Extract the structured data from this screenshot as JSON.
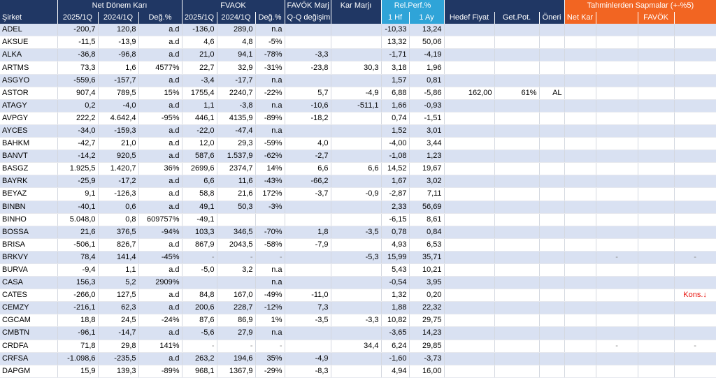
{
  "headers": {
    "group": {
      "net": "Net Dönem Karı",
      "fvaok": "FVAOK",
      "fvaok_marj": "FAVÖK Marj",
      "kar_marji": "Kar Marjı",
      "rel_perf": "Rel.Perf.%",
      "sapmalar": "Tahminlerden Sapmalar (+-%5)"
    },
    "cols": [
      "Şirket",
      "2025/1Q",
      "2024/1Q",
      "Değ.%",
      "2025/1Q",
      "2024/1Q",
      "Değ.%",
      "Q-Q değişim (%)",
      "",
      "1 Hf",
      "1 Ay",
      "Hedef Fiyat",
      "Get.Pot.",
      "Öneri",
      "Net Kar",
      "",
      "FAVÖK",
      ""
    ]
  },
  "rows": [
    [
      "ADEL",
      "-200,7",
      "120,8",
      "a.d",
      "-136,0",
      "289,0",
      "n.a",
      "",
      "",
      "-10,33",
      "13,24",
      "",
      "",
      "",
      "",
      "",
      "",
      ""
    ],
    [
      "AKSUE",
      "-11,5",
      "-13,9",
      "a.d",
      "4,6",
      "4,8",
      "-5%",
      "",
      "",
      "13,32",
      "50,06",
      "",
      "",
      "",
      "",
      "",
      "",
      ""
    ],
    [
      "ALKA",
      "-36,8",
      "-96,8",
      "a.d",
      "21,0",
      "94,1",
      "-78%",
      "-3,3",
      "",
      "-1,71",
      "-4,19",
      "",
      "",
      "",
      "",
      "",
      "",
      ""
    ],
    [
      "ARTMS",
      "73,3",
      "1,6",
      "4577%",
      "22,7",
      "32,9",
      "-31%",
      "-23,8",
      "30,3",
      "3,18",
      "1,96",
      "",
      "",
      "",
      "",
      "",
      "",
      ""
    ],
    [
      "ASGYO",
      "-559,6",
      "-157,7",
      "a.d",
      "-3,4",
      "-17,7",
      "n.a",
      "",
      "",
      "1,57",
      "0,81",
      "",
      "",
      "",
      "",
      "",
      "",
      ""
    ],
    [
      "ASTOR",
      "907,4",
      "789,5",
      "15%",
      "1755,4",
      "2240,7",
      "-22%",
      "5,7",
      "-4,9",
      "6,88",
      "-5,86",
      "162,00",
      "61%",
      "AL",
      "",
      "",
      "",
      ""
    ],
    [
      "ATAGY",
      "0,2",
      "-4,0",
      "a.d",
      "1,1",
      "-3,8",
      "n.a",
      "-10,6",
      "-511,1",
      "1,66",
      "-0,93",
      "",
      "",
      "",
      "",
      "",
      "",
      ""
    ],
    [
      "AVPGY",
      "222,2",
      "4.642,4",
      "-95%",
      "446,1",
      "4135,9",
      "-89%",
      "-18,2",
      "",
      "0,74",
      "-1,51",
      "",
      "",
      "",
      "",
      "",
      "",
      ""
    ],
    [
      "AYCES",
      "-34,0",
      "-159,3",
      "a.d",
      "-22,0",
      "-47,4",
      "n.a",
      "",
      "",
      "1,52",
      "3,01",
      "",
      "",
      "",
      "",
      "",
      "",
      ""
    ],
    [
      "BAHKM",
      "-42,7",
      "21,0",
      "a.d",
      "12,0",
      "29,3",
      "-59%",
      "4,0",
      "",
      "-4,00",
      "3,44",
      "",
      "",
      "",
      "",
      "",
      "",
      ""
    ],
    [
      "BANVT",
      "-14,2",
      "920,5",
      "a.d",
      "587,6",
      "1.537,9",
      "-62%",
      "-2,7",
      "",
      "-1,08",
      "1,23",
      "",
      "",
      "",
      "",
      "",
      "",
      ""
    ],
    [
      "BASGZ",
      "1.925,5",
      "1.420,7",
      "36%",
      "2699,6",
      "2374,7",
      "14%",
      "6,6",
      "6,6",
      "14,52",
      "19,67",
      "",
      "",
      "",
      "",
      "",
      "",
      ""
    ],
    [
      "BAYRK",
      "-25,9",
      "-17,2",
      "a.d",
      "6,6",
      "11,6",
      "-43%",
      "-66,2",
      "",
      "1,67",
      "3,02",
      "",
      "",
      "",
      "",
      "",
      "",
      ""
    ],
    [
      "BEYAZ",
      "9,1",
      "-126,3",
      "a.d",
      "58,8",
      "21,6",
      "172%",
      "-3,7",
      "-0,9",
      "-2,87",
      "7,11",
      "",
      "",
      "",
      "",
      "",
      "",
      ""
    ],
    [
      "BINBN",
      "-40,1",
      "0,6",
      "a.d",
      "49,1",
      "50,3",
      "-3%",
      "",
      "",
      "2,33",
      "56,69",
      "",
      "",
      "",
      "",
      "",
      "",
      ""
    ],
    [
      "BINHO",
      "5.048,0",
      "0,8",
      "609757%",
      "-49,1",
      "",
      "",
      "",
      "",
      "-6,15",
      "8,61",
      "",
      "",
      "",
      "",
      "",
      "",
      ""
    ],
    [
      "BOSSA",
      "21,6",
      "376,5",
      "-94%",
      "103,3",
      "346,5",
      "-70%",
      "1,8",
      "-3,5",
      "0,78",
      "0,84",
      "",
      "",
      "",
      "",
      "",
      "",
      ""
    ],
    [
      "BRISA",
      "-506,1",
      "826,7",
      "a.d",
      "867,9",
      "2043,5",
      "-58%",
      "-7,9",
      "",
      "4,93",
      "6,53",
      "",
      "",
      "",
      "",
      "",
      "",
      ""
    ],
    [
      "BRKVY",
      "78,4",
      "141,4",
      "-45%",
      "-",
      "-",
      "-",
      "",
      "-5,3",
      "15,99",
      "35,71",
      "",
      "",
      "",
      "",
      "-",
      "",
      "-"
    ],
    [
      "BURVA",
      "-9,4",
      "1,1",
      "a.d",
      "-5,0",
      "3,2",
      "n.a",
      "",
      "",
      "5,43",
      "10,21",
      "",
      "",
      "",
      "",
      "",
      "",
      ""
    ],
    [
      "CASA",
      "156,3",
      "5,2",
      "2909%",
      "",
      "",
      "n.a",
      "",
      "",
      "-0,54",
      "3,95",
      "",
      "",
      "",
      "",
      "",
      "",
      ""
    ],
    [
      "CATES",
      "-266,0",
      "127,5",
      "a.d",
      "84,8",
      "167,0",
      "-49%",
      "-11,0",
      "",
      "1,32",
      "0,20",
      "",
      "",
      "",
      "",
      "",
      "",
      "Kons.↓"
    ],
    [
      "CEMZY",
      "-216,1",
      "62,3",
      "a.d",
      "200,6",
      "228,7",
      "-12%",
      "7,3",
      "",
      "1,88",
      "22,32",
      "",
      "",
      "",
      "",
      "",
      "",
      ""
    ],
    [
      "CGCAM",
      "18,8",
      "24,5",
      "-24%",
      "87,6",
      "86,9",
      "1%",
      "-3,5",
      "-3,3",
      "10,82",
      "29,75",
      "",
      "",
      "",
      "",
      "",
      "",
      ""
    ],
    [
      "CMBTN",
      "-96,1",
      "-14,7",
      "a.d",
      "-5,6",
      "27,9",
      "n.a",
      "",
      "",
      "-3,65",
      "14,23",
      "",
      "",
      "",
      "",
      "",
      "",
      ""
    ],
    [
      "CRDFA",
      "71,8",
      "29,8",
      "141%",
      "-",
      "-",
      "-",
      "",
      "34,4",
      "6,24",
      "29,85",
      "",
      "",
      "",
      "",
      "-",
      "",
      "-"
    ],
    [
      "CRFSA",
      "-1.098,6",
      "-235,5",
      "a.d",
      "263,2",
      "194,6",
      "35%",
      "-4,9",
      "",
      "-1,60",
      "-3,73",
      "",
      "",
      "",
      "",
      "",
      "",
      ""
    ],
    [
      "DAPGM",
      "15,9",
      "139,3",
      "-89%",
      "968,1",
      "1367,9",
      "-29%",
      "-8,3",
      "",
      "4,94",
      "16,00",
      "",
      "",
      "",
      "",
      "",
      "",
      ""
    ]
  ]
}
